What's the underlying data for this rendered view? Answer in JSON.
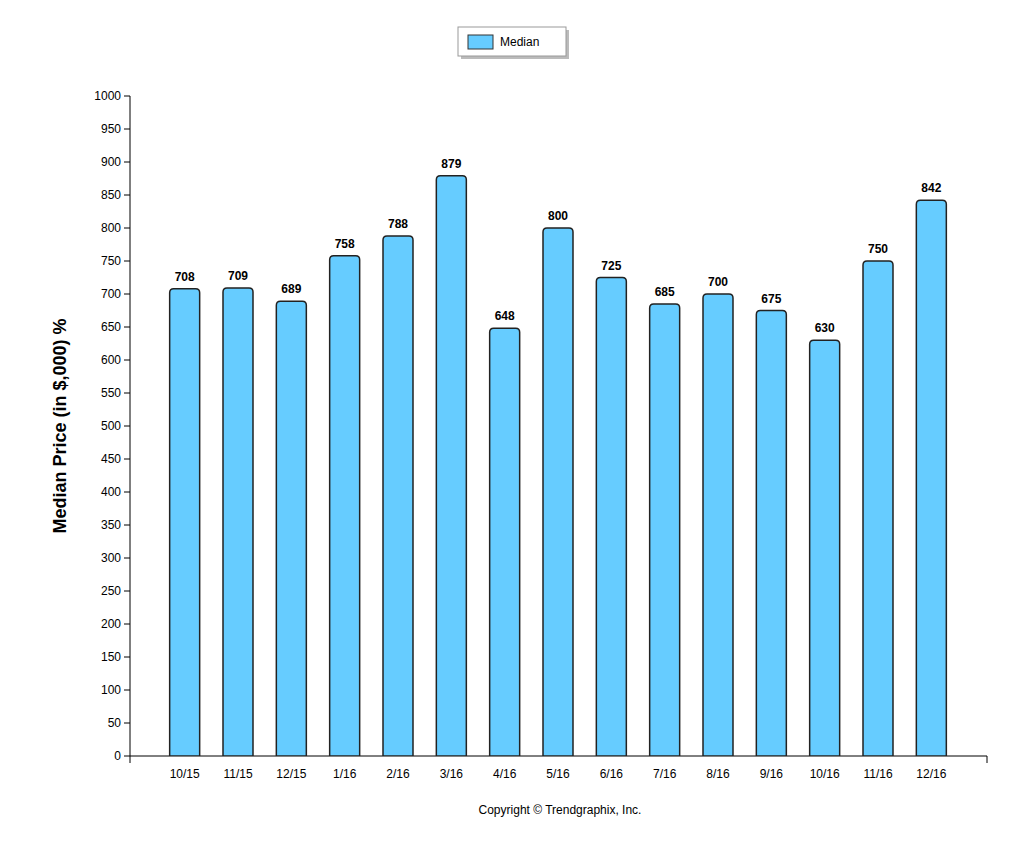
{
  "chart_data": {
    "type": "bar",
    "y_label": "Median Price (in $,000) %",
    "categories": [
      "10/15",
      "11/15",
      "12/15",
      "1/16",
      "2/16",
      "3/16",
      "4/16",
      "5/16",
      "6/16",
      "7/16",
      "8/16",
      "9/16",
      "10/16",
      "11/16",
      "12/16"
    ],
    "series": [
      {
        "name": "Median",
        "color": "#66ccff",
        "values": [
          708,
          709,
          689,
          758,
          788,
          879,
          648,
          800,
          725,
          685,
          700,
          675,
          630,
          750,
          842
        ]
      }
    ],
    "ylim": [
      0,
      1000
    ],
    "yticks": [
      0,
      50,
      100,
      150,
      200,
      250,
      300,
      350,
      400,
      450,
      500,
      550,
      600,
      650,
      700,
      750,
      800,
      850,
      900,
      950,
      1000
    ],
    "grid": false,
    "data_labels": true,
    "legend": "top",
    "annotations": [
      "Copyright © Trendgraphix, Inc."
    ]
  }
}
